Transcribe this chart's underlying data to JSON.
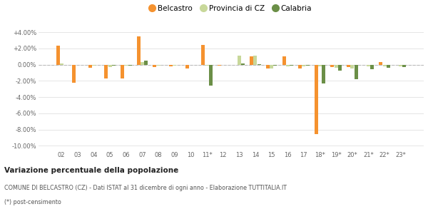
{
  "categories": [
    "02",
    "03",
    "04",
    "05",
    "06",
    "07",
    "08",
    "09",
    "10",
    "11*",
    "12",
    "13",
    "14",
    "15",
    "16",
    "17",
    "18*",
    "19*",
    "20*",
    "21*",
    "22*",
    "23*"
  ],
  "belcastro": [
    2.3,
    -2.2,
    -0.4,
    -1.7,
    -1.7,
    3.5,
    -0.3,
    -0.2,
    -0.5,
    2.4,
    -0.1,
    0.0,
    1.0,
    -0.5,
    1.0,
    -0.5,
    -8.6,
    -0.3,
    -0.3,
    0.0,
    0.3,
    0.0
  ],
  "provincia_cz": [
    0.1,
    0.0,
    -0.1,
    -0.3,
    -0.15,
    0.3,
    -0.1,
    -0.1,
    -0.05,
    -0.1,
    -0.05,
    1.1,
    1.1,
    -0.5,
    -0.2,
    -0.2,
    -0.25,
    -0.4,
    -0.45,
    -0.25,
    -0.2,
    -0.2
  ],
  "calabria": [
    0.0,
    0.0,
    -0.05,
    -0.15,
    -0.1,
    0.5,
    -0.05,
    -0.05,
    -0.05,
    -2.55,
    -0.05,
    0.1,
    0.05,
    -0.1,
    -0.1,
    -0.15,
    -2.3,
    -0.7,
    -1.8,
    -0.6,
    -0.4,
    -0.3
  ],
  "color_belcastro": "#f5922f",
  "color_provincia": "#c8d89a",
  "color_calabria": "#6b8f47",
  "title_bold": "Variazione percentuale della popolazione",
  "subtitle1": "COMUNE DI BELCASTRO (CZ) - Dati ISTAT al 31 dicembre di ogni anno - Elaborazione TUTTITALIA.IT",
  "subtitle2": "(*) post-censimento",
  "ylim": [
    -10.5,
    4.8
  ],
  "yticks": [
    -10.0,
    -8.0,
    -6.0,
    -4.0,
    -2.0,
    0.0,
    2.0,
    4.0
  ],
  "ytick_labels": [
    "-10.00%",
    "-8.00%",
    "-6.00%",
    "-4.00%",
    "-2.00%",
    "0.00%",
    "+2.00%",
    "+4.00%"
  ],
  "bg_color": "#ffffff",
  "grid_color": "#e0e0e0",
  "zero_line_color": "#bbbbbb"
}
